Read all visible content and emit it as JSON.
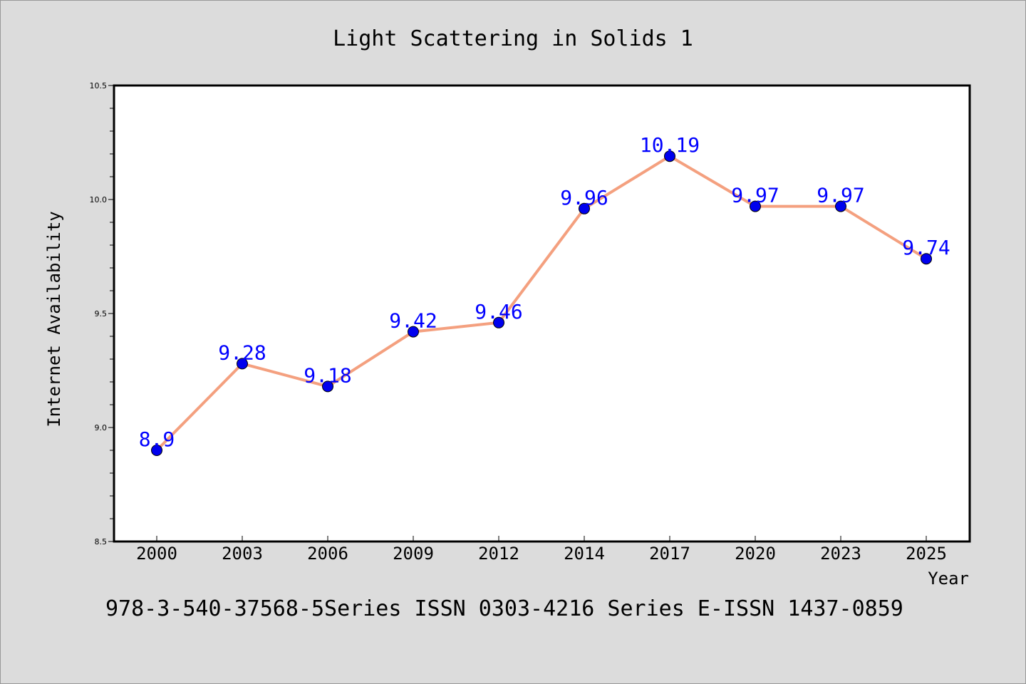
{
  "chart_data": {
    "type": "line",
    "title": "Light Scattering in Solids 1",
    "xlabel": "Year",
    "ylabel": "Internet Availability",
    "footer": "978-3-540-37568-5Series ISSN 0303-4216 Series E-ISSN 1437-0859",
    "categories": [
      "2000",
      "2003",
      "2006",
      "2009",
      "2012",
      "2014",
      "2017",
      "2020",
      "2023",
      "2025"
    ],
    "values": [
      8.9,
      9.28,
      9.18,
      9.42,
      9.46,
      9.96,
      10.19,
      9.97,
      9.97,
      9.74
    ],
    "data_labels": [
      "8.9",
      "9.28",
      "9.18",
      "9.42",
      "9.46",
      "9.96",
      "10.19",
      "9.97",
      "9.97",
      "9.74"
    ],
    "ylim": [
      8.5,
      10.5
    ],
    "yticks": [
      "8.5",
      "9.0",
      "9.5",
      "10.0",
      "10.5"
    ],
    "grid": false,
    "colors": {
      "line": "#f4a07f",
      "marker": "#0000ee",
      "label": "#0000ff",
      "background": "#dcdcdc",
      "plot_background": "#ffffff"
    }
  }
}
